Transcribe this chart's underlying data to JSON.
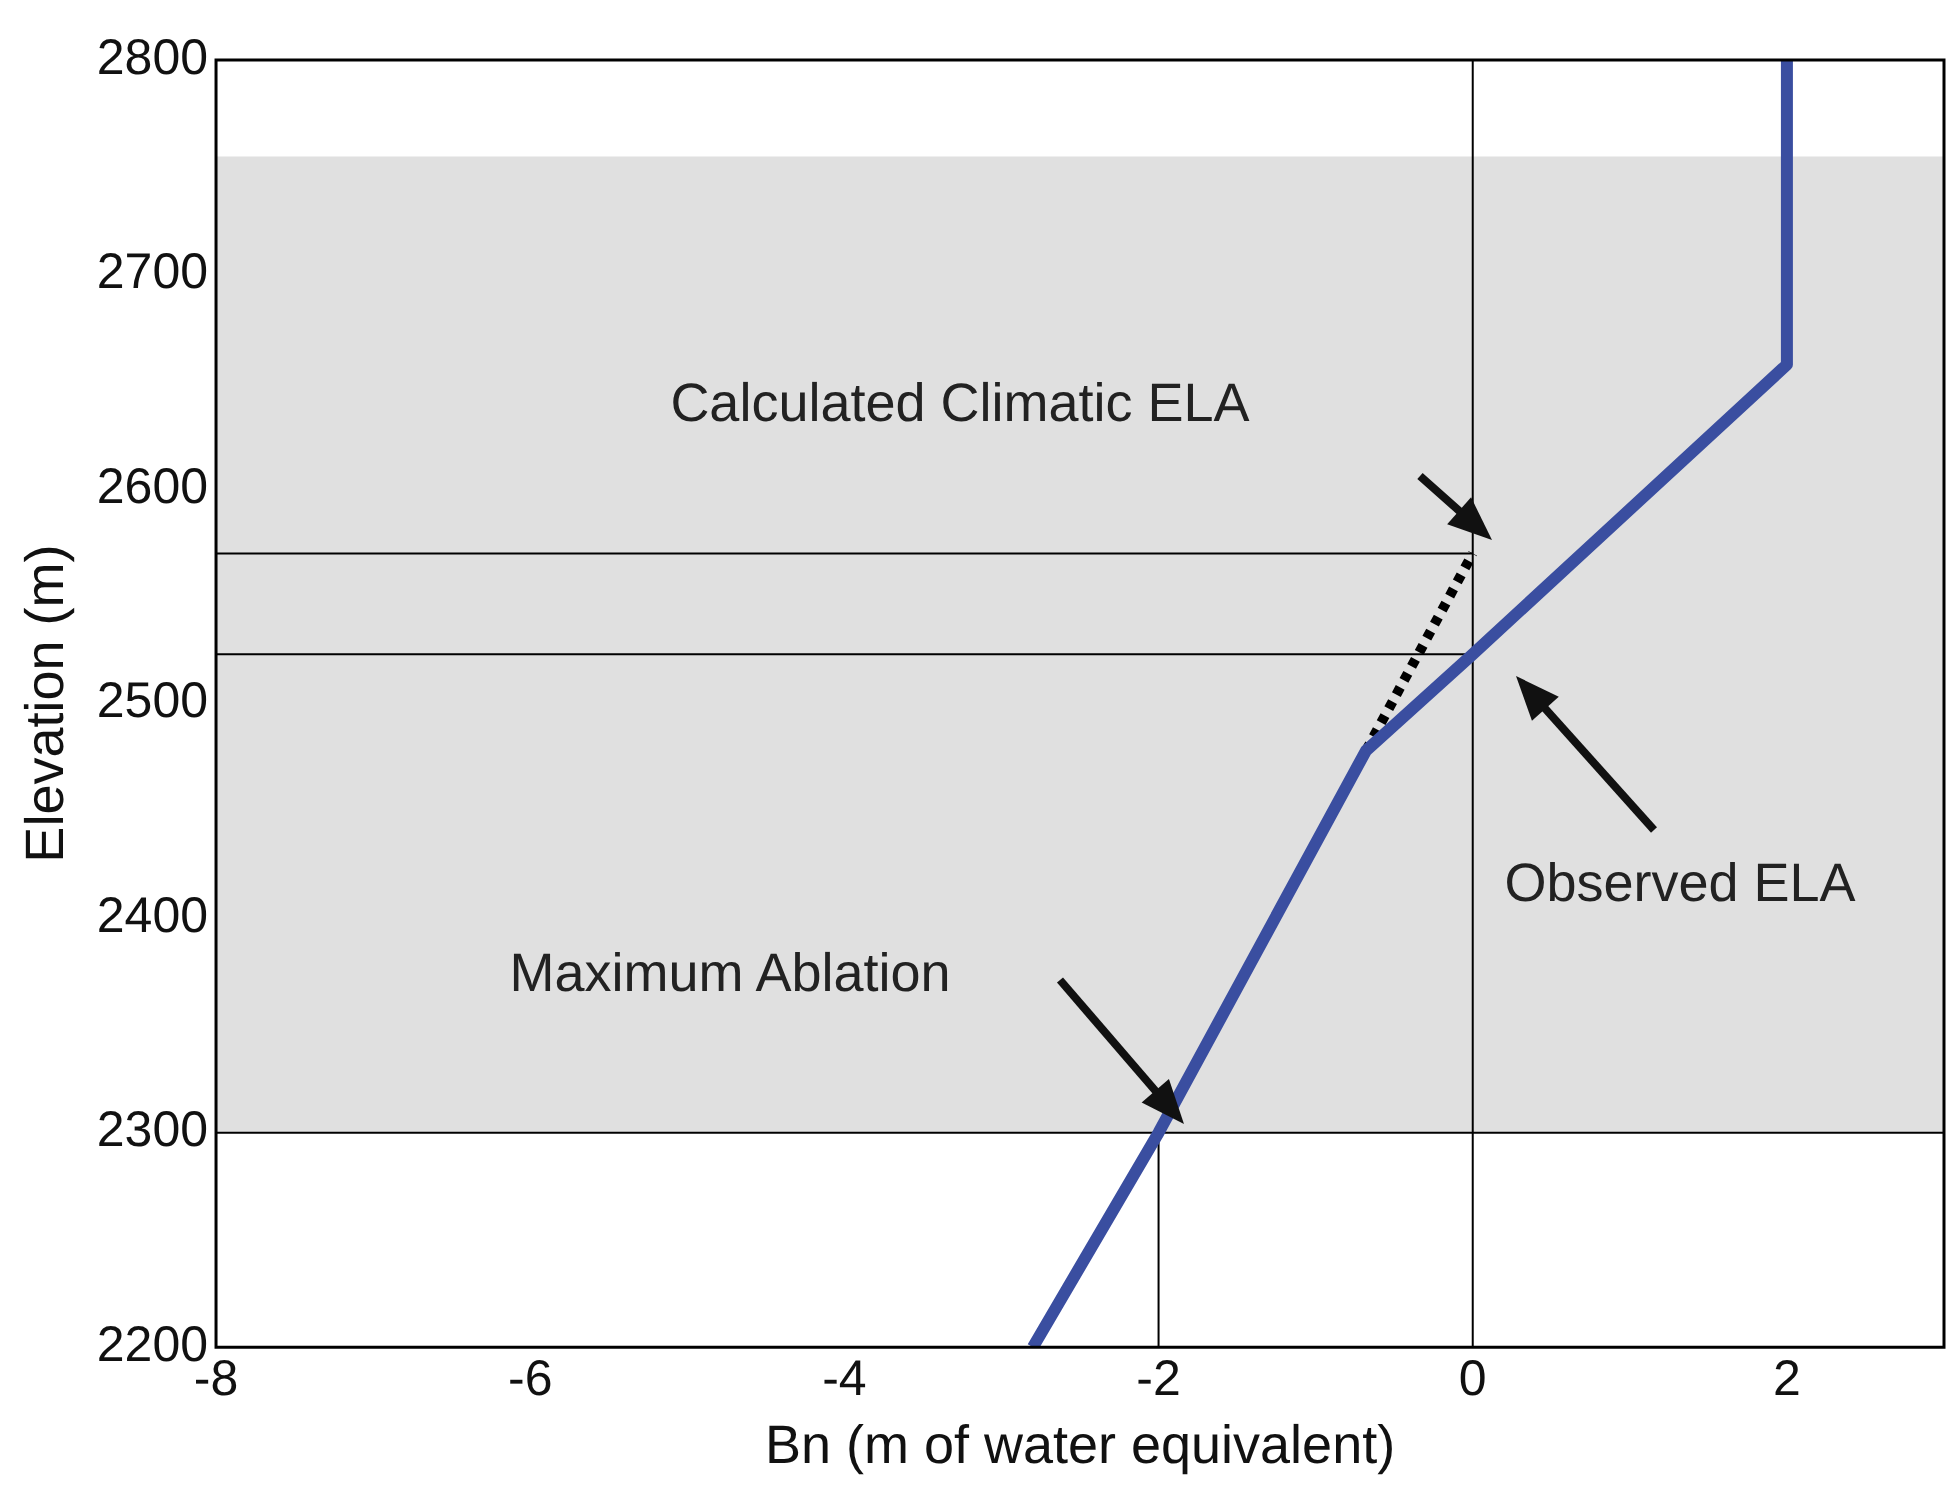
{
  "chart_data": {
    "type": "line",
    "xlabel": "Bn (m of water equivalent)",
    "ylabel": "Elevation (m)",
    "xlim": [
      -8,
      3
    ],
    "xticks": [
      -8,
      -6,
      -4,
      -2,
      0,
      2
    ],
    "ylim": [
      2200,
      2800
    ],
    "yticks": [
      2200,
      2300,
      2400,
      2500,
      2600,
      2700,
      2800
    ],
    "grid": false,
    "legend": false,
    "marker": "none",
    "series": [
      {
        "color": "#3a4ea0",
        "x": [
          -2.8,
          -2,
          -0.68,
          0,
          2,
          2
        ],
        "values": [
          2200,
          2300,
          2478,
          2523,
          2658,
          2800
        ]
      },
      {
        "color": "#000000",
        "x": [
          -0.68,
          0
        ],
        "values": [
          2478,
          2570
        ],
        "line_style": "dotted"
      },
      {
        "color": "#000000",
        "x": [
          -8,
          0
        ],
        "values": [
          2570,
          2570
        ]
      },
      {
        "color": "#000000",
        "x": [
          -8,
          0
        ],
        "values": [
          2523,
          2523
        ]
      },
      {
        "color": "#000000",
        "x": [
          -2,
          -2
        ],
        "values": [
          2200,
          2300
        ]
      }
    ],
    "ref_lines": [
      {
        "axis": "x",
        "value": 0,
        "color": "#000000"
      },
      {
        "axis": "y",
        "value": 2300,
        "color": "#000000"
      }
    ],
    "bands": [
      {
        "axis": "y",
        "from": 2300,
        "to": 2755,
        "color": "#e0e0e0"
      }
    ],
    "annotations": [
      "Calculated Climatic ELA",
      "Observed ELA",
      "Maximum Ablation"
    ]
  }
}
